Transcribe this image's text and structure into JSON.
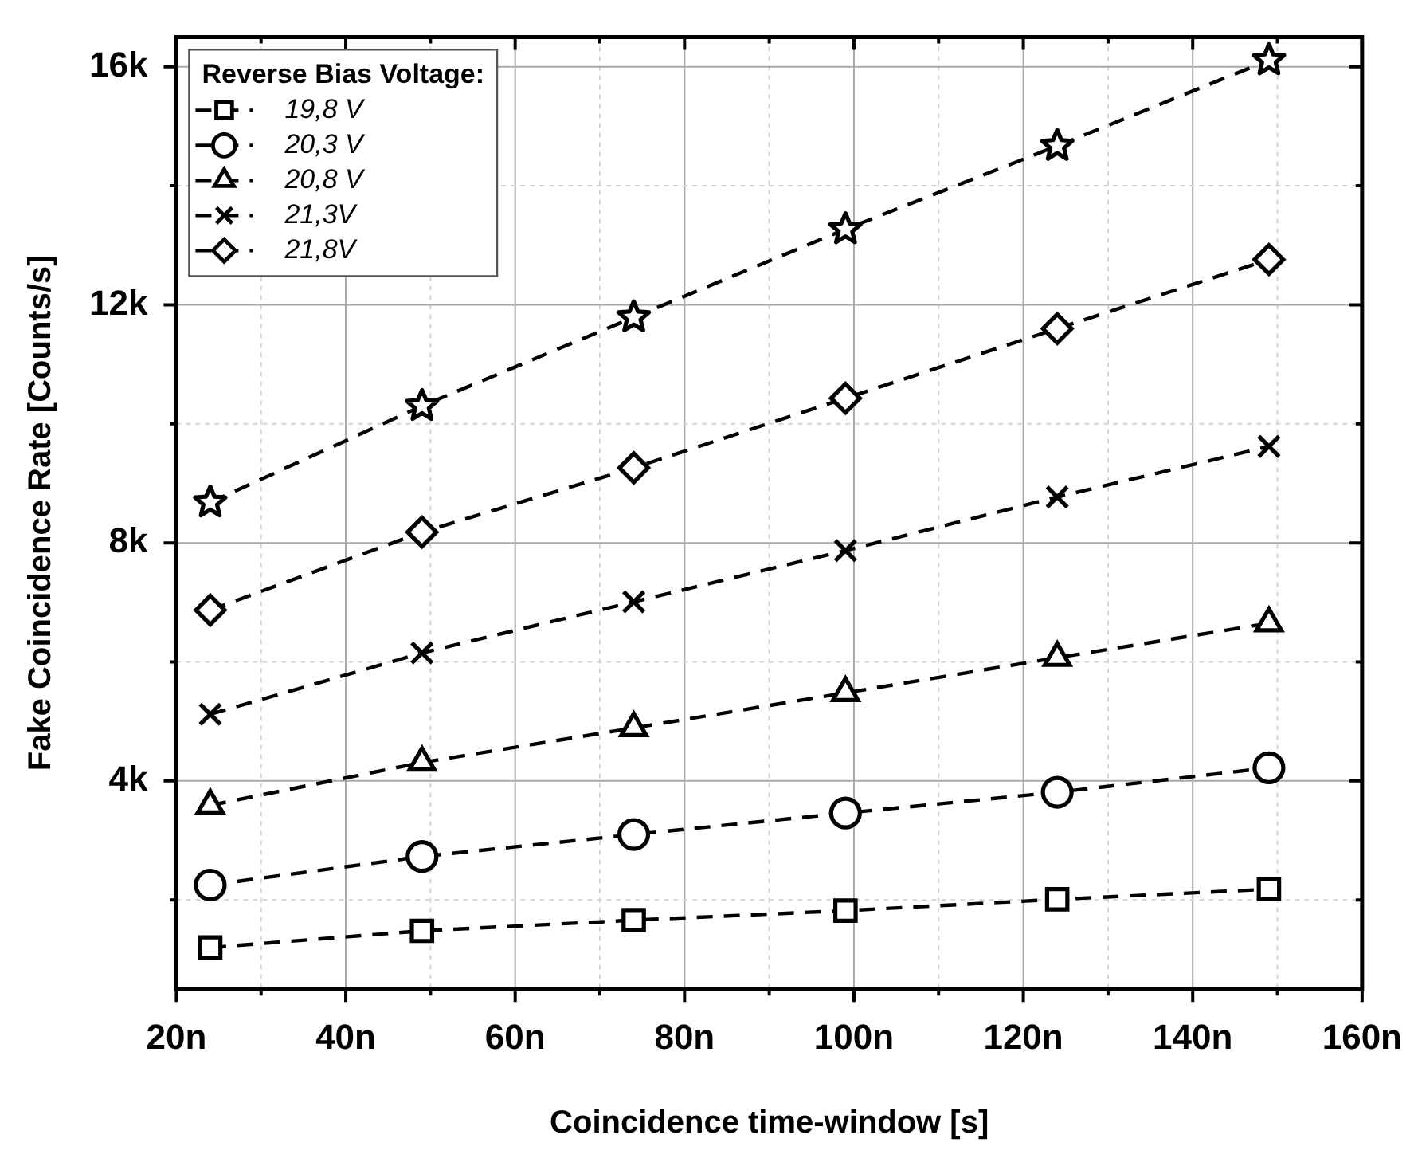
{
  "chart_data": {
    "type": "line",
    "xlabel": "Coincidence time-window [s]",
    "ylabel": "Fake Coincidence Rate [Counts/s]",
    "legend_title": "Reverse Bias Voltage:",
    "legend": "top left",
    "grid": true,
    "line_style": "dashed",
    "x": [
      24,
      49,
      74,
      99,
      124,
      149
    ],
    "xlim": [
      20,
      160
    ],
    "xticks": [
      {
        "value": 20,
        "label": "20n"
      },
      {
        "value": 30,
        "label": null
      },
      {
        "value": 40,
        "label": "40n"
      },
      {
        "value": 50,
        "label": null
      },
      {
        "value": 60,
        "label": "60n"
      },
      {
        "value": 70,
        "label": null
      },
      {
        "value": 80,
        "label": "80n"
      },
      {
        "value": 90,
        "label": null
      },
      {
        "value": 100,
        "label": "100n"
      },
      {
        "value": 110,
        "label": null
      },
      {
        "value": 120,
        "label": "120n"
      },
      {
        "value": 130,
        "label": null
      },
      {
        "value": 140,
        "label": "140n"
      },
      {
        "value": 150,
        "label": null
      },
      {
        "value": 160,
        "label": "160n"
      }
    ],
    "ylim": [
      500,
      16500
    ],
    "yticks": [
      {
        "value": 2000,
        "label": null
      },
      {
        "value": 4000,
        "label": "4k"
      },
      {
        "value": 6000,
        "label": null
      },
      {
        "value": 8000,
        "label": "8k"
      },
      {
        "value": 10000,
        "label": null
      },
      {
        "value": 12000,
        "label": "12k"
      },
      {
        "value": 14000,
        "label": null
      },
      {
        "value": 16000,
        "label": "16k"
      }
    ],
    "series": [
      {
        "name": "19,8 V",
        "color": "#000000",
        "marker": "square",
        "values": [
          1200,
          1480,
          1660,
          1820,
          2010,
          2180
        ]
      },
      {
        "name": "20,3 V",
        "color": "#000000",
        "marker": "circle",
        "values": [
          2250,
          2730,
          3100,
          3460,
          3810,
          4220
        ]
      },
      {
        "name": "20,8 V",
        "color": "#000000",
        "marker": "triangle",
        "values": [
          3590,
          4310,
          4890,
          5480,
          6070,
          6650
        ]
      },
      {
        "name": "21,3V",
        "color": "#000000",
        "marker": "cross",
        "values": [
          5120,
          6150,
          7010,
          7870,
          8770,
          9620
        ]
      },
      {
        "name": "21,8V",
        "color": "#000000",
        "marker": "diamond",
        "values": [
          6870,
          8180,
          9260,
          10430,
          11600,
          12760
        ]
      },
      {
        "color": "#000000",
        "marker": "star",
        "values": [
          8680,
          10300,
          11790,
          13270,
          14670,
          16110
        ]
      }
    ]
  }
}
